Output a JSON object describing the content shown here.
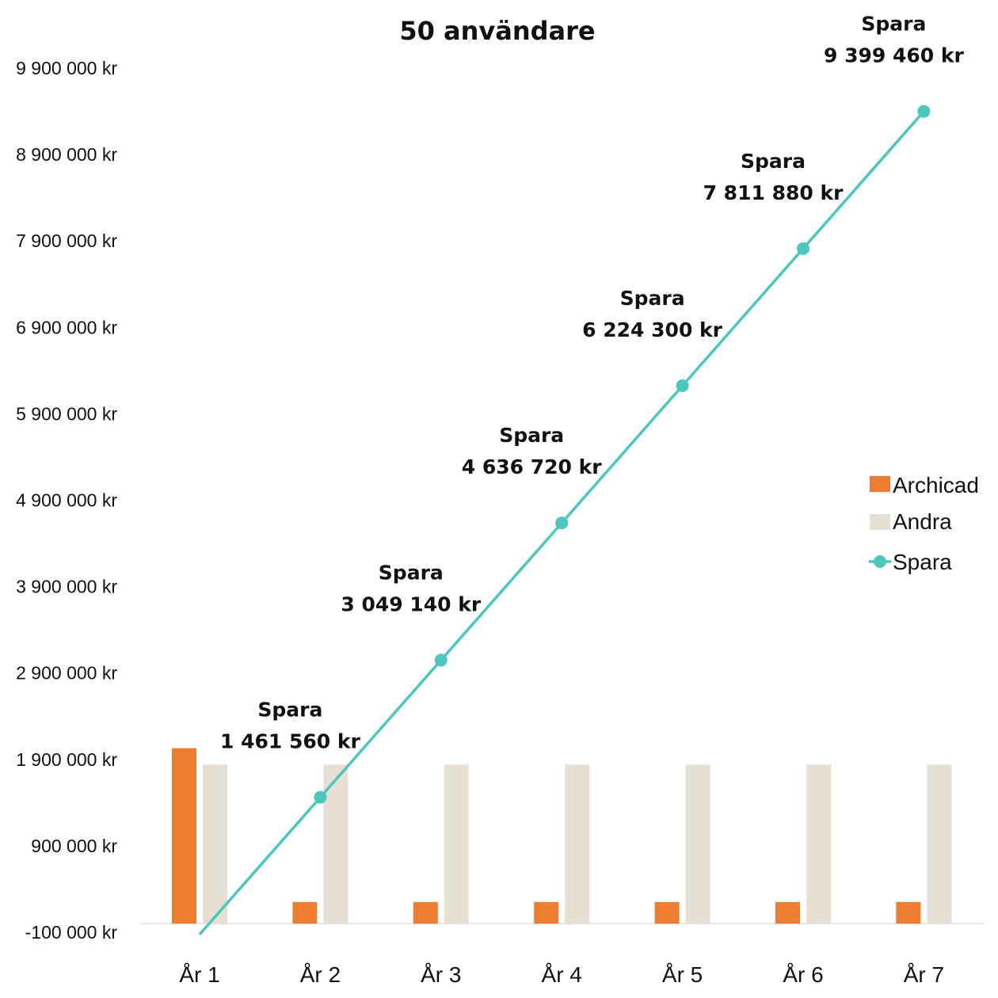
{
  "colors": {
    "archicad": "#ED7D31",
    "andra": "#E5DFD4",
    "spara": "#4DC6BB",
    "axis": "#E0E0E0",
    "text": "#111111"
  },
  "chart_data": {
    "type": "bar",
    "title": "50 användare",
    "xlabel": "",
    "ylabel": "",
    "categories": [
      "År 1",
      "År 2",
      "År 3",
      "År 4",
      "År 5",
      "År 6",
      "År 7"
    ],
    "y_ticks": [
      -100000,
      900000,
      1900000,
      2900000,
      3900000,
      4900000,
      5900000,
      6900000,
      7900000,
      8900000,
      9900000
    ],
    "y_tick_labels": [
      "-100 000 kr",
      "900 000 kr",
      "1 900 000 kr",
      "2 900 000 kr",
      "3 900 000 kr",
      "4 900 000 kr",
      "5 900 000 kr",
      "6 900 000 kr",
      "7 900 000 kr",
      "8 900 000 kr",
      "9 900 000 kr"
    ],
    "ylim": [
      -100000,
      9900000
    ],
    "grid": false,
    "legend_position": "right",
    "series": [
      {
        "name": "Archicad",
        "type": "bar",
        "color": "#ED7D31",
        "values": [
          2030000,
          250000,
          250000,
          250000,
          250000,
          250000,
          250000
        ]
      },
      {
        "name": "Andra",
        "type": "bar",
        "color": "#E5DFD4",
        "values": [
          1840000,
          1840000,
          1840000,
          1840000,
          1840000,
          1840000,
          1840000
        ]
      },
      {
        "name": "Spara",
        "type": "line",
        "color": "#4DC6BB",
        "values": [
          -125000,
          1461560,
          3049140,
          4636720,
          6224300,
          7811880,
          9399460
        ],
        "label_series_name": "Spara",
        "data_labels": [
          "",
          "1 461 560 kr",
          "3 049 140 kr",
          "4 636 720 kr",
          "6 224 300 kr",
          "7 811 880 kr",
          "9 399 460 kr"
        ]
      }
    ]
  }
}
